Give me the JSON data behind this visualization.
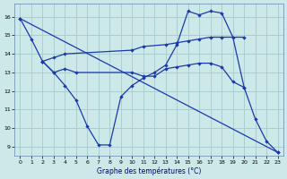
{
  "title": "Graphe des températures (°C)",
  "bg_color": "#cce8e8",
  "grid_color": "#aacece",
  "line_color": "#1a3aab",
  "xlim": [
    -0.5,
    23.5
  ],
  "ylim": [
    8.5,
    16.7
  ],
  "xticks": [
    0,
    1,
    2,
    3,
    4,
    5,
    6,
    7,
    8,
    9,
    10,
    11,
    12,
    13,
    14,
    15,
    16,
    17,
    18,
    19,
    20,
    21,
    22,
    23
  ],
  "yticks": [
    9,
    10,
    11,
    12,
    13,
    14,
    15,
    16
  ],
  "series": [
    {
      "x": [
        0,
        1,
        2,
        3,
        4,
        5,
        6,
        7,
        8,
        9,
        10,
        11,
        12,
        13,
        14,
        15,
        16,
        17,
        18,
        19,
        20,
        21,
        22,
        23
      ],
      "y": [
        15.9,
        14.8,
        13.6,
        13.0,
        12.3,
        11.5,
        10.1,
        9.1,
        9.1,
        11.7,
        12.3,
        12.7,
        13.0,
        13.4,
        14.5,
        16.3,
        16.1,
        16.3,
        16.2,
        14.9,
        12.2,
        10.5,
        9.3,
        8.7
      ]
    },
    {
      "x": [
        0,
        23
      ],
      "y": [
        15.9,
        8.7
      ]
    },
    {
      "x": [
        2,
        3,
        4,
        10,
        11,
        13,
        14,
        15,
        16,
        17,
        18,
        20
      ],
      "y": [
        13.6,
        13.8,
        14.0,
        14.2,
        14.4,
        14.5,
        14.6,
        14.7,
        14.8,
        14.9,
        14.9,
        14.9
      ]
    },
    {
      "x": [
        2,
        3,
        4,
        5,
        10,
        11,
        12,
        13,
        14,
        15,
        16,
        17,
        18,
        19,
        20
      ],
      "y": [
        13.6,
        13.0,
        13.2,
        13.0,
        13.0,
        12.8,
        12.8,
        13.2,
        13.3,
        13.4,
        13.5,
        13.5,
        13.3,
        12.5,
        12.2
      ]
    }
  ]
}
